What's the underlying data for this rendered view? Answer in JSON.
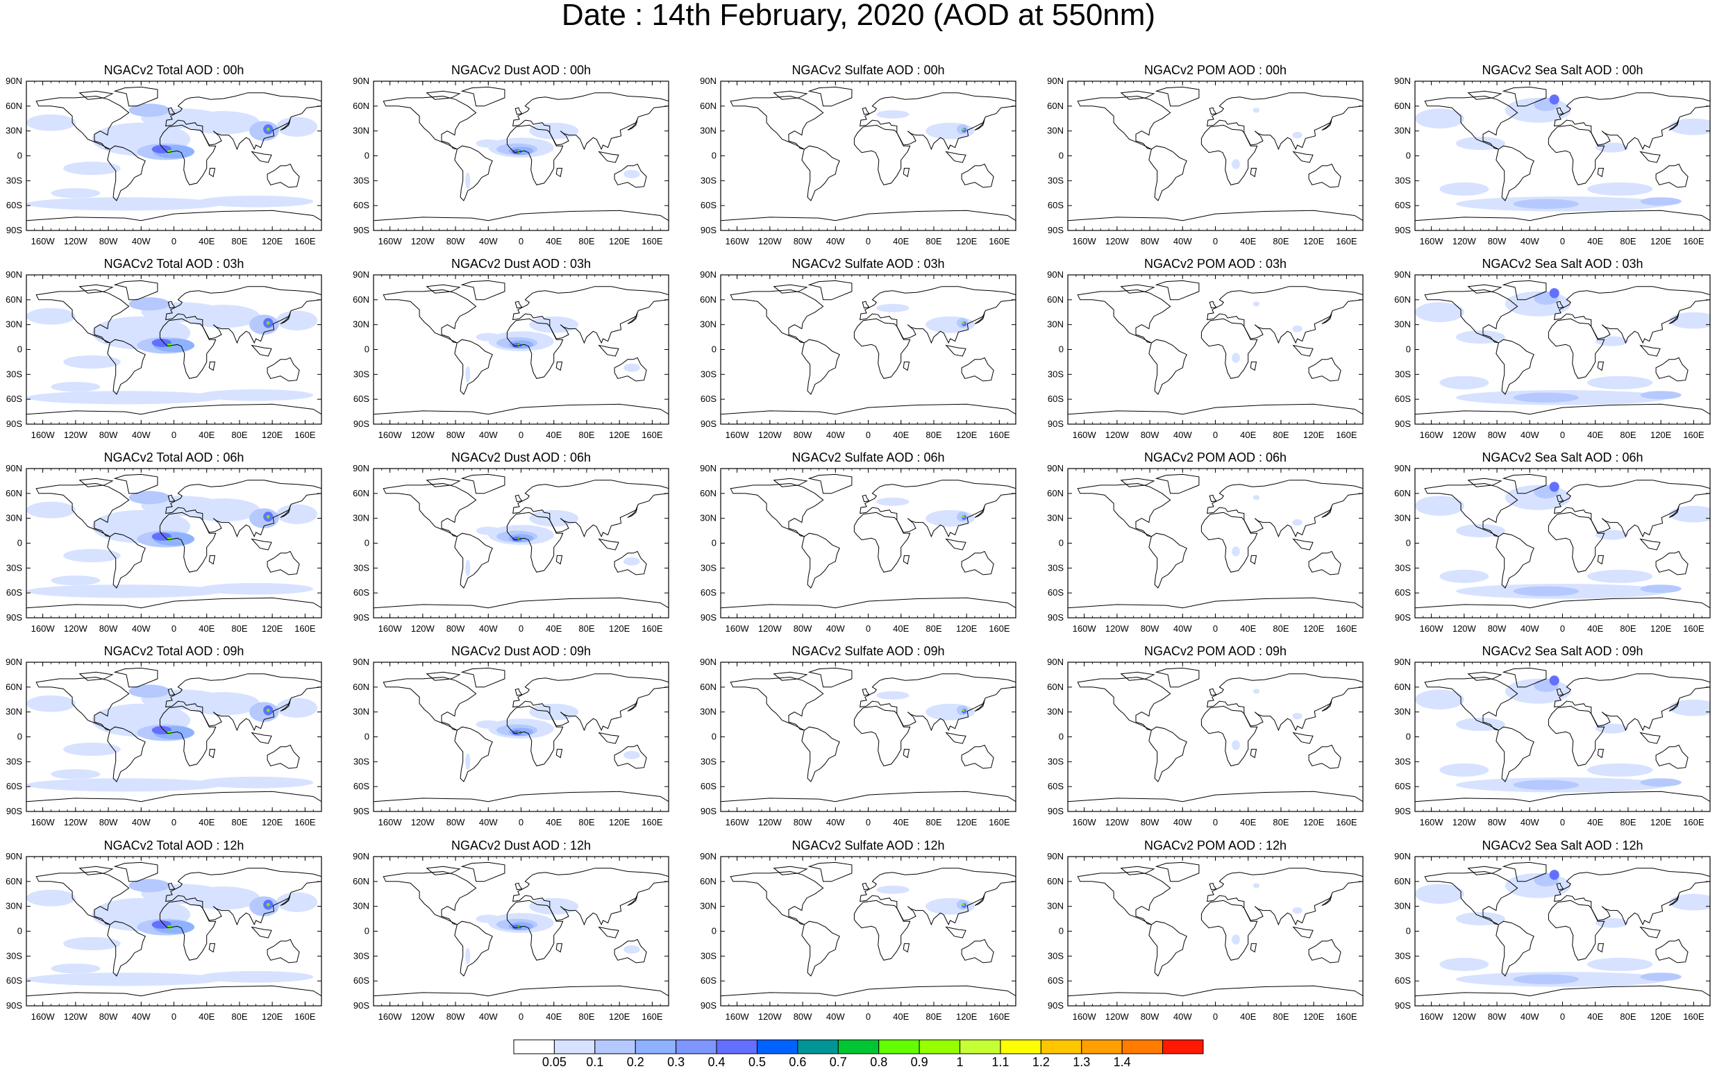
{
  "title": "Date : 14th February, 2020 (AOD at 550nm)",
  "panel_titles": [
    [
      "NGACv2 Total AOD : 00h",
      "NGACv2 Dust AOD : 00h",
      "NGACv2 Sulfate AOD : 00h",
      "NGACv2 POM AOD : 00h",
      "NGACv2 Sea Salt AOD : 00h"
    ],
    [
      "NGACv2 Total AOD : 03h",
      "NGACv2 Dust AOD : 03h",
      "NGACv2 Sulfate AOD : 03h",
      "NGACv2 POM AOD : 03h",
      "NGACv2 Sea Salt AOD : 03h"
    ],
    [
      "NGACv2 Total AOD : 06h",
      "NGACv2 Dust AOD : 06h",
      "NGACv2 Sulfate AOD : 06h",
      "NGACv2 POM AOD : 06h",
      "NGACv2 Sea Salt AOD : 06h"
    ],
    [
      "NGACv2 Total AOD : 09h",
      "NGACv2 Dust AOD : 09h",
      "NGACv2 Sulfate AOD : 09h",
      "NGACv2 POM AOD : 09h",
      "NGACv2 Sea Salt  AOD : 09h"
    ],
    [
      "NGACv2 Total AOD  : 12h",
      "NGACv2 Dust AOD : 12h",
      "NGACv2 Sulfate AOD : 12h",
      "NGACv2 POM  AOD : 12h",
      "NGACv2 Sea Salt AOD : 12h"
    ]
  ],
  "species": [
    "total",
    "dust",
    "sulfate",
    "pom",
    "seasalt"
  ],
  "lat_ticks": [
    "90N",
    "60N",
    "30N",
    "0",
    "30S",
    "60S",
    "90S"
  ],
  "lon_ticks": [
    "160W",
    "120W",
    "80W",
    "40W",
    "0",
    "40E",
    "80E",
    "120E",
    "160E"
  ],
  "lon_tick_values": [
    -160,
    -120,
    -80,
    -40,
    0,
    40,
    80,
    120,
    160
  ],
  "colorbar": {
    "labels": [
      "0.05",
      "0.1",
      "0.2",
      "0.3",
      "0.4",
      "0.5",
      "0.6",
      "0.7",
      "0.8",
      "0.9",
      "1",
      "1.1",
      "1.2",
      "1.3",
      "1.4"
    ],
    "colors": [
      "#ffffff",
      "#d6e2ff",
      "#b5c9ff",
      "#8eb2ff",
      "#7f96ff",
      "#6370ff",
      "#0063ff",
      "#009696",
      "#00c633",
      "#63ff00",
      "#96ff00",
      "#c6ff33",
      "#ffff00",
      "#ffc600",
      "#ffa000",
      "#ff7c00",
      "#ff1900"
    ]
  },
  "colors": {
    "light_blue": "#d6e2ff",
    "mid_blue": "#b5c9ff",
    "blue": "#8eb2ff",
    "dark_blue": "#6370ff",
    "green": "#63ff00",
    "coast": "#000000"
  }
}
